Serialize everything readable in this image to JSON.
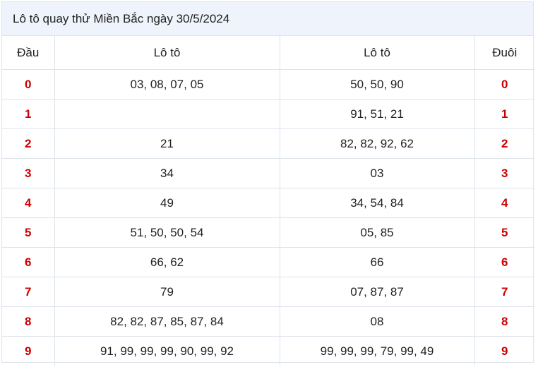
{
  "title": "Lô tô quay thử Miền Bắc ngày 30/5/2024",
  "headers": {
    "dau": "Đầu",
    "loto1": "Lô tô",
    "loto2": "Lô tô",
    "duoi": "Đuôi"
  },
  "rows": [
    {
      "dau": "0",
      "loto1": "03, 08, 07, 05",
      "loto2": "50, 50, 90",
      "duoi": "0"
    },
    {
      "dau": "1",
      "loto1": "",
      "loto2": "91, 51, 21",
      "duoi": "1"
    },
    {
      "dau": "2",
      "loto1": "21",
      "loto2": "82, 82, 92, 62",
      "duoi": "2"
    },
    {
      "dau": "3",
      "loto1": "34",
      "loto2": "03",
      "duoi": "3"
    },
    {
      "dau": "4",
      "loto1": "49",
      "loto2": "34, 54, 84",
      "duoi": "4"
    },
    {
      "dau": "5",
      "loto1": "51, 50, 50, 54",
      "loto2": "05, 85",
      "duoi": "5"
    },
    {
      "dau": "6",
      "loto1": "66, 62",
      "loto2": "66",
      "duoi": "6"
    },
    {
      "dau": "7",
      "loto1": "79",
      "loto2": "07, 87, 87",
      "duoi": "7"
    },
    {
      "dau": "8",
      "loto1": "82, 82, 87, 85, 87, 84",
      "loto2": "08",
      "duoi": "8"
    },
    {
      "dau": "9",
      "loto1": "91, 99, 99, 99, 90, 99, 92",
      "loto2": "99, 99, 99, 79, 99, 49",
      "duoi": "9"
    }
  ],
  "colors": {
    "digit": "#cc0000",
    "title_bg": "#eef3fc",
    "border": "#dde3ea"
  }
}
